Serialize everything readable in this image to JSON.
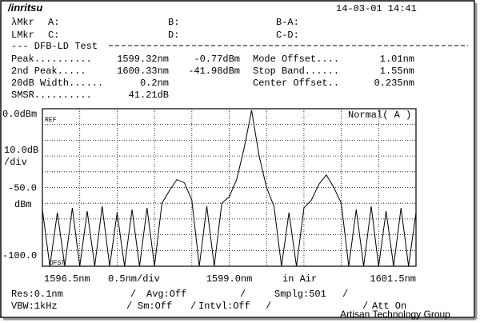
{
  "header": {
    "logo": "/inritsu",
    "datetime": "14-03-01 14:41",
    "markers": [
      [
        "λMkr",
        "A:",
        "B:",
        "B-A:"
      ],
      [
        "LMkr",
        "C:",
        "D:",
        "C-D:"
      ]
    ],
    "section": "--- DFB-LD Test",
    "results": [
      [
        "Peak..........",
        "1599.32nm",
        "-0.77dBm",
        "Mode Offset....",
        "1.01nm"
      ],
      [
        "2nd  Peak.....",
        "1600.33nm",
        "-41.98dBm",
        "Stop Band......",
        "1.55nm"
      ],
      [
        "20dB Width......",
        "0.2nm",
        "",
        "Center Offset..",
        "0.235nm"
      ],
      [
        "SMSR..........",
        "41.21dB",
        "",
        "",
        ""
      ]
    ]
  },
  "chart_data": {
    "type": "line",
    "mode": "Normal( A )",
    "ref_label": "REF",
    "ofst_label": "OFST",
    "scale": [
      "10.0dB",
      "/div"
    ],
    "unit": "dBm",
    "x_div": "0.5nm/div",
    "medium": "in Air",
    "xlim": [
      1596.5,
      1601.5
    ],
    "ylim": [
      -100,
      0
    ],
    "xticks": [
      {
        "value": 1596.5,
        "label": "1596.5nm"
      },
      {
        "value": 1599,
        "label": "1599.0nm"
      },
      {
        "value": 1601.5,
        "label": "1601.5nm"
      }
    ],
    "yticks": [
      {
        "value": 0,
        "label": "0.0dBm"
      },
      {
        "value": -50,
        "label": "-50.0"
      },
      {
        "value": -100,
        "label": "-100.0"
      }
    ],
    "xgrid": [
      1596.5,
      1597,
      1597.5,
      1598,
      1598.5,
      1599,
      1599.5,
      1600,
      1600.5,
      1601,
      1601.5
    ],
    "ygrid": [
      0,
      -10,
      -20,
      -30,
      -40,
      -50,
      -60,
      -70,
      -80,
      -90,
      -100
    ],
    "color": "#000000",
    "x": [
      1596.5,
      1596.6,
      1596.7,
      1596.8,
      1596.9,
      1597,
      1597.1,
      1597.2,
      1597.3,
      1597.4,
      1597.5,
      1597.6,
      1597.7,
      1597.8,
      1597.9,
      1598,
      1598.1,
      1598.2,
      1598.3,
      1598.4,
      1598.5,
      1598.6,
      1598.7,
      1598.8,
      1598.9,
      1599,
      1599.1,
      1599.2,
      1599.3,
      1599.4,
      1599.5,
      1599.6,
      1599.7,
      1599.8,
      1599.9,
      1600,
      1600.1,
      1600.2,
      1600.3,
      1600.4,
      1600.5,
      1600.6,
      1600.7,
      1600.8,
      1600.9,
      1601,
      1601.1,
      1601.2,
      1601.3,
      1601.4,
      1601.5
    ],
    "values": [
      -64,
      -100,
      -66,
      -100,
      -63,
      -100,
      -65,
      -100,
      -62,
      -100,
      -66,
      -100,
      -64,
      -100,
      -63,
      -100,
      -60,
      -52,
      -45,
      -47,
      -58,
      -100,
      -62,
      -100,
      -60,
      -56,
      -45,
      -25,
      -1,
      -30,
      -50,
      -62,
      -100,
      -66,
      -100,
      -63,
      -58,
      -48,
      -42,
      -50,
      -60,
      -100,
      -64,
      -100,
      -62,
      -100,
      -65,
      -100,
      -63,
      -100,
      -66
    ]
  },
  "footer": {
    "rows": [
      [
        [
          "Res:0.1nm",
          14
        ],
        [
          "/",
          163
        ],
        [
          "Avg:Off",
          183
        ],
        [
          "/",
          300
        ],
        [
          "Smplg:501",
          343
        ],
        [
          "/",
          428
        ]
      ],
      [
        [
          "VBW:1kHz",
          14
        ],
        [
          "/",
          158
        ],
        [
          "Sm:Off",
          172
        ],
        [
          "/",
          238
        ],
        [
          "Intvl:Off",
          248
        ],
        [
          "/",
          332
        ],
        [
          "/",
          453
        ],
        [
          "Att On",
          465
        ]
      ]
    ],
    "watermark": "Artisan Technology Group"
  }
}
